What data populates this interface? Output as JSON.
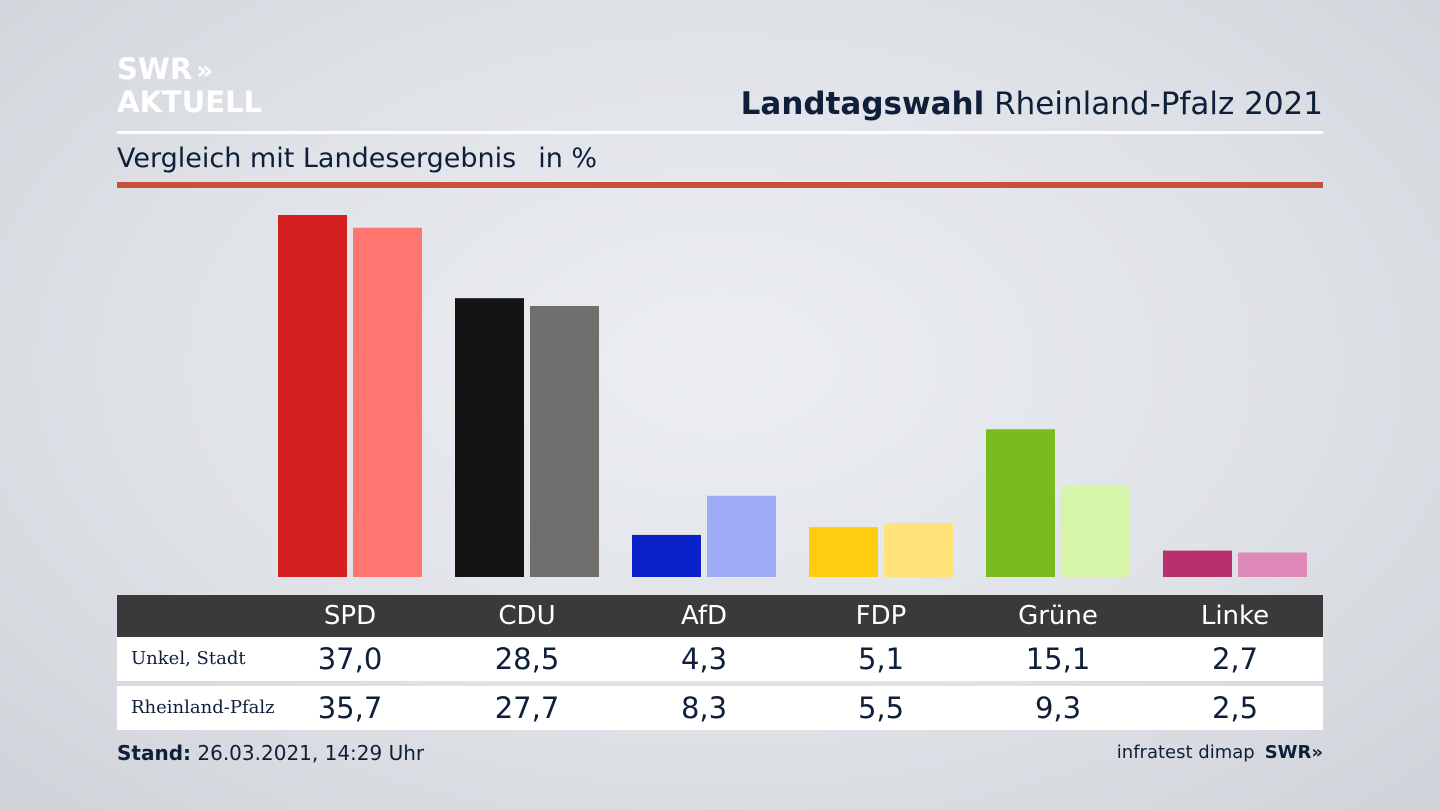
{
  "logo": {
    "line1": "SWR",
    "line1_arrows": "»",
    "line2": "AKTUELL"
  },
  "header": {
    "title_bold": "Landtagswahl",
    "title_rest": "Rheinland-Pfalz 2021"
  },
  "subtitle": {
    "text": "Vergleich mit Landesergebnis",
    "unit": "in %"
  },
  "chart_data": {
    "type": "bar",
    "categories": [
      "SPD",
      "CDU",
      "AfD",
      "FDP",
      "Grüne",
      "Linke"
    ],
    "series": [
      {
        "name": "Unkel, Stadt",
        "values": [
          37.0,
          28.5,
          4.3,
          5.1,
          15.1,
          2.7
        ],
        "colors": [
          "#d42020",
          "#141414",
          "#0a22c8",
          "#ffcc10",
          "#78bc1e",
          "#b8306e"
        ]
      },
      {
        "name": "Rheinland-Pfalz",
        "values": [
          35.7,
          27.7,
          8.3,
          5.5,
          9.3,
          2.5
        ],
        "colors": [
          "#ff7570",
          "#706f6d",
          "#9eacf8",
          "#ffe27a",
          "#d6f5aa",
          "#de89b7"
        ]
      }
    ],
    "ylim": [
      0,
      37.0
    ]
  },
  "table": {
    "headers": [
      "SPD",
      "CDU",
      "AfD",
      "FDP",
      "Grüne",
      "Linke"
    ],
    "rows": [
      {
        "label": "Unkel, Stadt",
        "values": [
          "37,0",
          "28,5",
          "4,3",
          "5,1",
          "15,1",
          "2,7"
        ]
      },
      {
        "label": "Rheinland-Pfalz",
        "values": [
          "35,7",
          "27,7",
          "8,3",
          "5,5",
          "9,3",
          "2,5"
        ]
      }
    ]
  },
  "footer": {
    "stand_label": "Stand:",
    "stand_value": "26.03.2021, 14:29 Uhr",
    "source": "infratest dimap",
    "source_logo": "SWR»"
  }
}
